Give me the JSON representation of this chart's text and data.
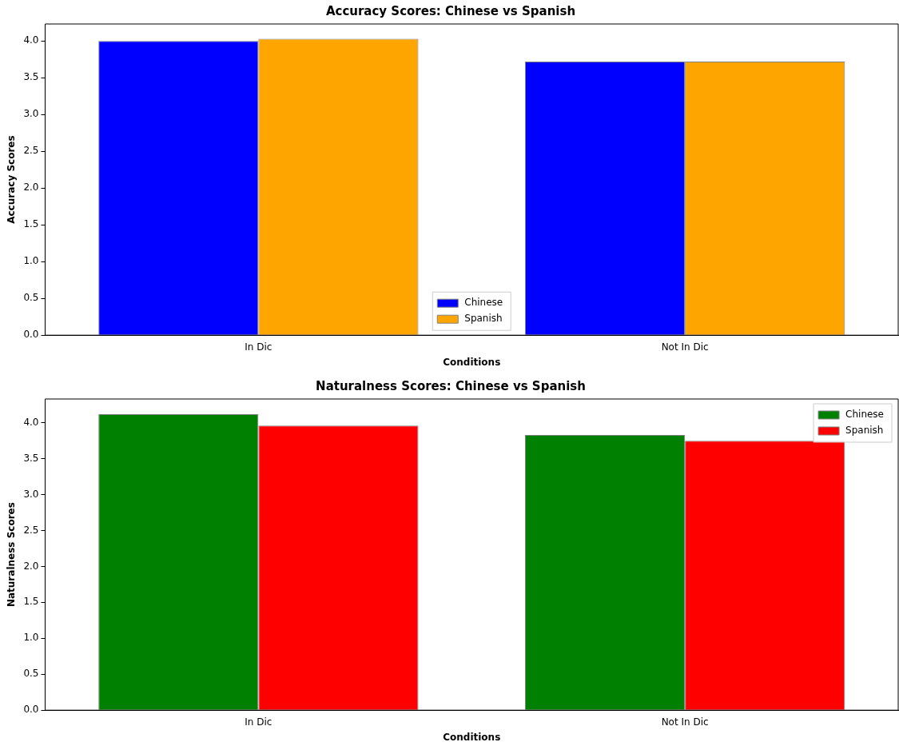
{
  "chart_data": [
    {
      "type": "bar",
      "title": "Accuracy Scores: Chinese vs Spanish",
      "xlabel": "Conditions",
      "ylabel": "Accuracy Scores",
      "categories": [
        "In Dic",
        "Not In Dic"
      ],
      "series": [
        {
          "name": "Chinese",
          "color": "#0000ff",
          "values": [
            4.0,
            3.72
          ]
        },
        {
          "name": "Spanish",
          "color": "#ffa500",
          "values": [
            4.03,
            3.72
          ]
        }
      ],
      "ylim": [
        0,
        4.23
      ],
      "yticks": [
        {
          "value": 0,
          "label": "0.0"
        },
        {
          "value": 0.5,
          "label": "0.5"
        },
        {
          "value": 1,
          "label": "1.0"
        },
        {
          "value": 1.5,
          "label": "1.5"
        },
        {
          "value": 2,
          "label": "2.0"
        },
        {
          "value": 2.5,
          "label": "2.5"
        },
        {
          "value": 3,
          "label": "3.0"
        },
        {
          "value": 3.5,
          "label": "3.5"
        },
        {
          "value": 4,
          "label": "4.0"
        }
      ],
      "grid": false,
      "legend": "bottom"
    },
    {
      "type": "bar",
      "title": "Naturalness Scores: Chinese vs Spanish",
      "xlabel": "Conditions",
      "ylabel": "Naturalness Scores",
      "categories": [
        "In Dic",
        "Not In Dic"
      ],
      "series": [
        {
          "name": "Chinese",
          "color": "#008000",
          "values": [
            4.12,
            3.83
          ]
        },
        {
          "name": "Spanish",
          "color": "#ff0000",
          "values": [
            3.96,
            3.75
          ]
        }
      ],
      "ylim": [
        0,
        4.33
      ],
      "yticks": [
        {
          "value": 0,
          "label": "0.0"
        },
        {
          "value": 0.5,
          "label": "0.5"
        },
        {
          "value": 1,
          "label": "1.0"
        },
        {
          "value": 1.5,
          "label": "1.5"
        },
        {
          "value": 2,
          "label": "2.0"
        },
        {
          "value": 2.5,
          "label": "2.5"
        },
        {
          "value": 3,
          "label": "3.0"
        },
        {
          "value": 3.5,
          "label": "3.5"
        },
        {
          "value": 4,
          "label": "4.0"
        }
      ],
      "grid": false,
      "legend": "top right"
    }
  ]
}
